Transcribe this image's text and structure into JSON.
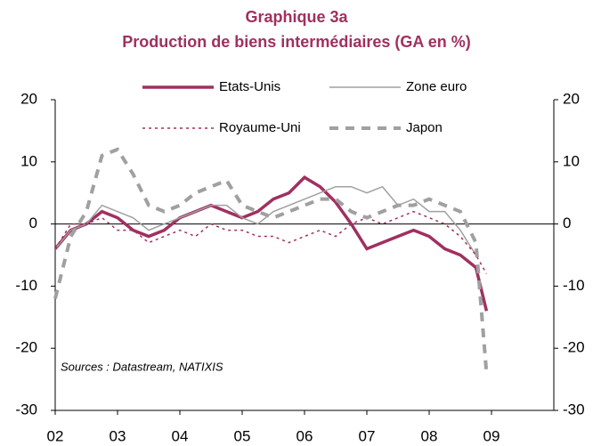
{
  "chart_data": {
    "type": "line",
    "title": "Graphique 3a",
    "subtitle": "Production de biens intermédiaires (GA en %)",
    "annotation": "Sources : Datastream, NATIXIS",
    "x": [
      2,
      2.25,
      2.5,
      2.75,
      3,
      3.25,
      3.5,
      3.75,
      4,
      4.25,
      4.5,
      4.75,
      5,
      5.25,
      5.5,
      5.75,
      6,
      6.25,
      6.5,
      6.75,
      7,
      7.25,
      7.5,
      7.75,
      8,
      8.25,
      8.5,
      8.75,
      8.92
    ],
    "xlim": [
      2,
      10
    ],
    "xticks": [
      {
        "value": 2,
        "label": "02"
      },
      {
        "value": 3,
        "label": "03"
      },
      {
        "value": 4,
        "label": "04"
      },
      {
        "value": 5,
        "label": "05"
      },
      {
        "value": 6,
        "label": "06"
      },
      {
        "value": 7,
        "label": "07"
      },
      {
        "value": 8,
        "label": "08"
      },
      {
        "value": 9,
        "label": "09"
      }
    ],
    "ylim": [
      -30,
      20
    ],
    "yticks": [
      -30,
      -20,
      -10,
      0,
      10,
      20
    ],
    "y2lim": [
      -30,
      20
    ],
    "y2ticks": [
      -30,
      -20,
      -10,
      0,
      10,
      20
    ],
    "series": [
      {
        "name": "Etats-Unis",
        "color": "#a0305f",
        "style": "solid",
        "values": [
          -4,
          -1,
          0,
          2,
          1,
          -1,
          -2,
          -1,
          1,
          2,
          3,
          2,
          1,
          2,
          4,
          5,
          7.5,
          6,
          3.5,
          0,
          -4,
          -3,
          -2,
          -1,
          -2,
          -4,
          -5,
          -7,
          -14
        ]
      },
      {
        "name": "Zone euro",
        "color": "#a0a0a0",
        "style": "thin",
        "values": [
          -4,
          -1,
          0,
          3,
          2,
          1,
          -1,
          0,
          1,
          2,
          3,
          3,
          1,
          0,
          2,
          3,
          4,
          5,
          6,
          6,
          5,
          6,
          3,
          4,
          2,
          2,
          -1,
          -5,
          null
        ]
      },
      {
        "name": "Royaume-Uni",
        "color": "#a0305f",
        "style": "dotted",
        "values": [
          -4,
          0,
          0,
          1,
          -1,
          -1,
          -3,
          -2,
          -1,
          -2,
          0,
          -1,
          -1,
          -2,
          -2,
          -3,
          -2,
          -1,
          -2,
          0,
          1,
          0,
          1,
          2,
          1,
          0,
          -2,
          -5,
          -8
        ]
      },
      {
        "name": "Japon",
        "color": "#a0a0a0",
        "style": "dashed",
        "values": [
          -12,
          -2,
          2,
          11,
          12,
          8,
          3,
          2,
          3,
          5,
          6,
          7,
          3,
          2,
          1,
          2,
          3,
          4,
          4,
          2,
          1,
          2,
          3,
          3,
          4,
          3,
          2,
          -3,
          -24
        ]
      }
    ]
  }
}
